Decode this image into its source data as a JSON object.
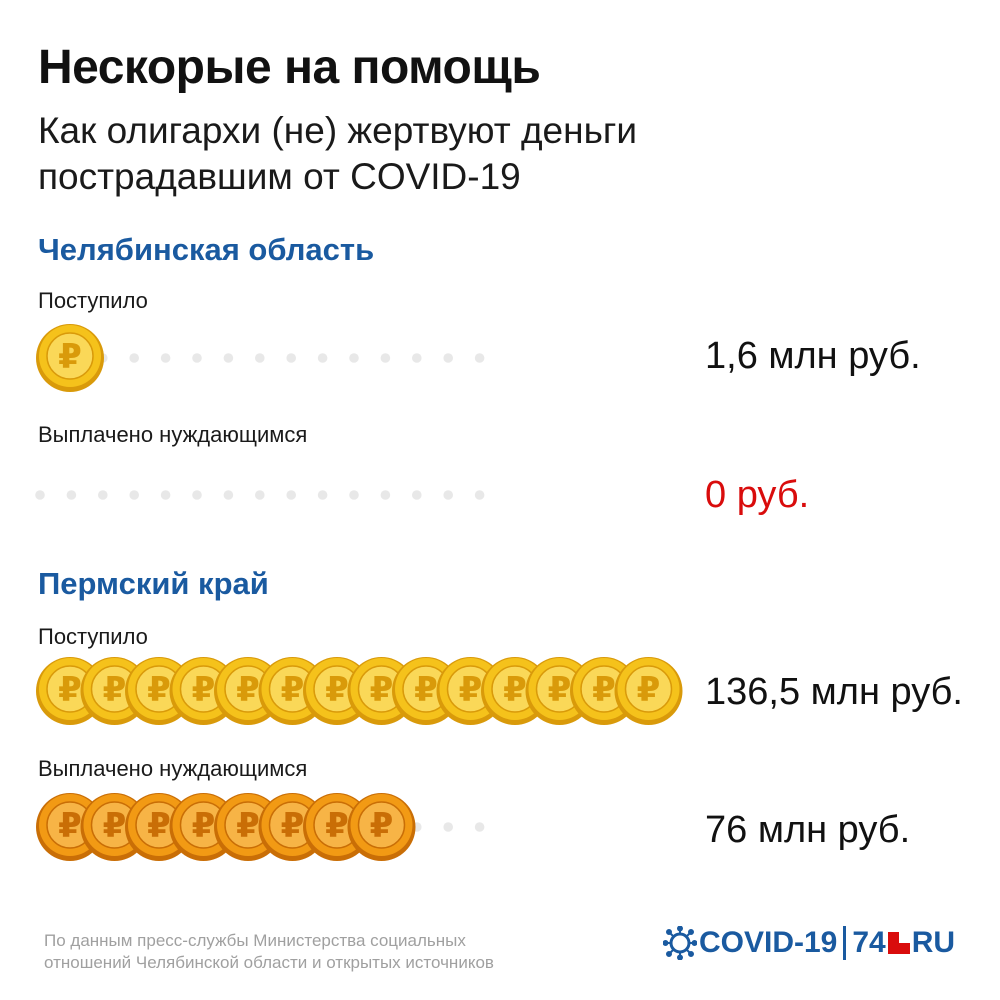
{
  "title": "Нескорые на помощь",
  "subtitle_line1": "Как олигархи (не) жертвуют деньги",
  "subtitle_line2": "пострадавшим от COVID-19",
  "colors": {
    "region_title": "#1a5aa0",
    "zero_value": "#d90c0c",
    "coin_received": "#f5c21b",
    "coin_paid": "#f29a14",
    "dot": "#e8e8e8"
  },
  "icons": {
    "coin": "ruble-coin-icon",
    "logo_virus": "virus-icon"
  },
  "chart_data": {
    "type": "bar",
    "unit": "млн руб.",
    "coin_value_mln": 10,
    "regions": [
      {
        "name": "Челябинская область",
        "rows": [
          {
            "label": "Поступило",
            "value": 1.6,
            "value_text": "1,6 млн руб.",
            "style": "received"
          },
          {
            "label": "Выплачено нуждающимся",
            "value": 0,
            "value_text": "0 руб.",
            "style": "zero"
          }
        ]
      },
      {
        "name": "Пермский край",
        "rows": [
          {
            "label": "Поступило",
            "value": 136.5,
            "value_text": "136,5 млн руб.",
            "style": "received"
          },
          {
            "label": "Выплачено нуждающимся",
            "value": 76,
            "value_text": "76 млн руб.",
            "style": "paid"
          }
        ]
      }
    ]
  },
  "footer": {
    "source_line1": "По данным пресс-службы Министерства социальных",
    "source_line2": "отношений Челябинской области и открытых источников",
    "logo_covid": "COVID-19",
    "logo_num": "74",
    "logo_ru": "RU"
  }
}
